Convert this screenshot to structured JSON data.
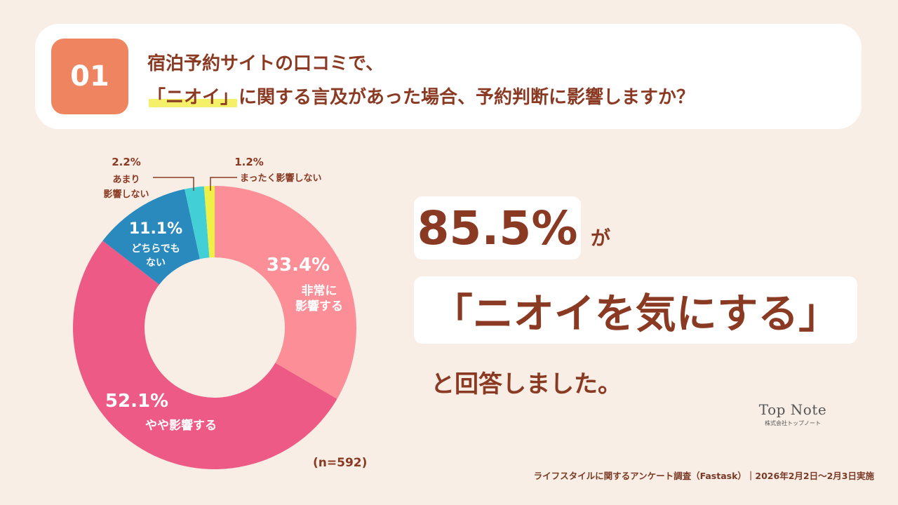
{
  "question": {
    "number": "01",
    "line1": "宿泊予約サイトの口コミで、",
    "line2_highlight": "「ニオイ」",
    "line2_rest": "に関する言及があった場合、予約判断に影響しますか？"
  },
  "result": {
    "percent": "85.5%",
    "ga": "が",
    "phrase": "「ニオイを気にする」",
    "tail": "と回答しました。"
  },
  "sample": "(n=592)",
  "brand": {
    "name": "Top Note",
    "sub": "株式会社トップノート"
  },
  "source": "ライフスタイルに関するアンケート調査（Fastask）｜2026年2月2日〜2月3日実施",
  "chart_data": {
    "type": "pie",
    "donut": true,
    "start": "top",
    "direction": "clockwise",
    "slices": [
      {
        "pct_label": "33.4%",
        "value": 33.4,
        "label_lines": [
          "非常に",
          "影響する"
        ],
        "color": "#fb8e96"
      },
      {
        "pct_label": "52.1%",
        "value": 52.1,
        "label_lines": [
          "やや影響する"
        ],
        "color": "#ee5a86"
      },
      {
        "pct_label": "11.1%",
        "value": 11.1,
        "label_lines": [
          "どちらでも",
          "ない"
        ],
        "color": "#2a89bd"
      },
      {
        "pct_label": "2.2%",
        "value": 2.2,
        "label_lines": [
          "あまり",
          "影響しない"
        ],
        "color": "#42d0d6"
      },
      {
        "pct_label": "1.2%",
        "value": 1.2,
        "label_lines": [
          "まったく影響しない"
        ],
        "color": "#eef048"
      }
    ]
  }
}
